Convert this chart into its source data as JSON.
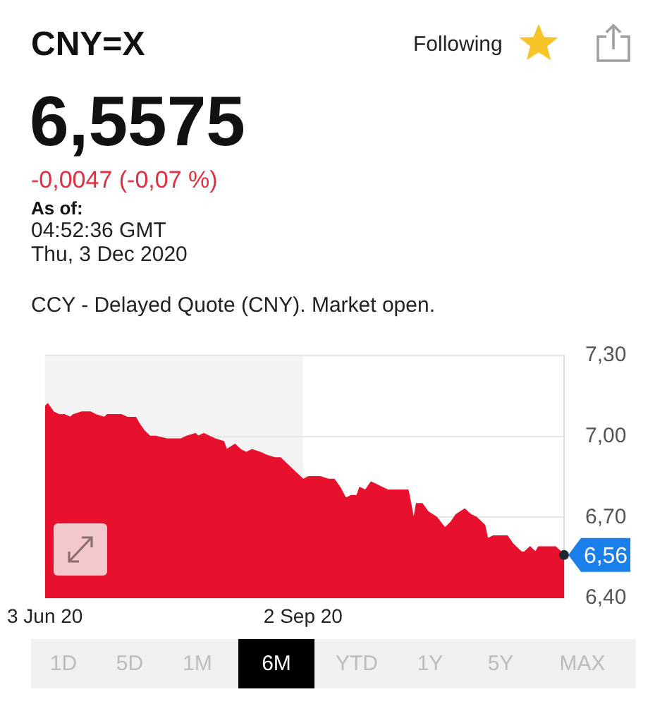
{
  "chart_data": {
    "type": "area",
    "title": "CNY=X",
    "subtitle": "CCY - Delayed Quote (CNY). Market open.",
    "annotations": [
      "6,5575",
      "-0,0047 (-0,07 %)",
      "As of:",
      "04:52:36 GMT",
      "Thu, 3 Dec 2020",
      "Following",
      "1D",
      "5D",
      "1M",
      "6M",
      "YTD",
      "1Y",
      "5Y",
      "MAX",
      {
        "text": "6,56",
        "x": "2020-12-03",
        "y": 6.56
      }
    ],
    "x": [
      "2020-06-03",
      "2020-06-04",
      "2020-06-06",
      "2020-06-08",
      "2020-06-10",
      "2020-06-12",
      "2020-06-13",
      "2020-06-16",
      "2020-06-19",
      "2020-06-21",
      "2020-06-24",
      "2020-06-25",
      "2020-06-28",
      "2020-06-30",
      "2020-07-02",
      "2020-07-05",
      "2020-07-06",
      "2020-07-08",
      "2020-07-10",
      "2020-07-12",
      "2020-07-16",
      "2020-07-19",
      "2020-07-21",
      "2020-07-23",
      "2020-07-26",
      "2020-07-27",
      "2020-07-29",
      "2020-07-31",
      "2020-08-02",
      "2020-08-05",
      "2020-08-06",
      "2020-08-09",
      "2020-08-11",
      "2020-08-13",
      "2020-08-15",
      "2020-08-18",
      "2020-08-20",
      "2020-08-23",
      "2020-08-25",
      "2020-08-27",
      "2020-08-30",
      "2020-09-02",
      "2020-09-04",
      "2020-09-06",
      "2020-09-08",
      "2020-09-11",
      "2020-09-13",
      "2020-09-15",
      "2020-09-17",
      "2020-09-19",
      "2020-09-21",
      "2020-09-22",
      "2020-09-24",
      "2020-09-26",
      "2020-09-28",
      "2020-09-30",
      "2020-10-02",
      "2020-10-06",
      "2020-10-09",
      "2020-10-11",
      "2020-10-12",
      "2020-10-14",
      "2020-10-16",
      "2020-10-19",
      "2020-10-22",
      "2020-10-24",
      "2020-10-26",
      "2020-10-29",
      "2020-10-31",
      "2020-11-02",
      "2020-11-05",
      "2020-11-06",
      "2020-11-08",
      "2020-11-10",
      "2020-11-13",
      "2020-11-15",
      "2020-11-18",
      "2020-11-19",
      "2020-11-21",
      "2020-11-23",
      "2020-11-24",
      "2020-11-27",
      "2020-11-30",
      "2020-12-03"
    ],
    "series": [
      {
        "color": "#e8112d",
        "values": [
          7.11,
          7.12,
          7.09,
          7.08,
          7.08,
          7.07,
          7.08,
          7.09,
          7.09,
          7.08,
          7.07,
          7.08,
          7.08,
          7.08,
          7.07,
          7.07,
          7.05,
          7.02,
          7.0,
          7.0,
          6.99,
          6.99,
          6.99,
          7.0,
          7.01,
          7.0,
          7.01,
          7.0,
          6.99,
          6.98,
          6.95,
          6.97,
          6.95,
          6.94,
          6.95,
          6.94,
          6.93,
          6.92,
          6.92,
          6.9,
          6.87,
          6.84,
          6.85,
          6.85,
          6.85,
          6.84,
          6.84,
          6.81,
          6.77,
          6.78,
          6.78,
          6.81,
          6.8,
          6.83,
          6.82,
          6.81,
          6.8,
          6.8,
          6.8,
          6.69,
          6.75,
          6.75,
          6.72,
          6.7,
          6.66,
          6.68,
          6.71,
          6.73,
          6.71,
          6.7,
          6.67,
          6.62,
          6.63,
          6.63,
          6.63,
          6.6,
          6.57,
          6.57,
          6.59,
          6.57,
          6.59,
          6.59,
          6.59,
          6.56
        ]
      }
    ],
    "xlim": [
      "2020-06-03",
      "2020-12-03"
    ],
    "xticks": [
      {
        "value": "2020-06-03",
        "label": "3 Jun 20"
      },
      {
        "value": "2020-09-02",
        "label": "2 Sep 20"
      }
    ],
    "ylim": [
      6.4,
      7.3
    ],
    "yticks": [
      {
        "value": 6.4,
        "label": "6,40"
      },
      {
        "value": 6.7,
        "label": "6,70"
      },
      {
        "value": 7.0,
        "label": "7,00"
      },
      {
        "value": 7.3,
        "label": "7,30"
      }
    ],
    "bands": [
      {
        "axis": "x",
        "from": "2020-06-03",
        "to": "2020-09-02",
        "color": "#f3f3f4"
      }
    ],
    "grid": "y"
  }
}
